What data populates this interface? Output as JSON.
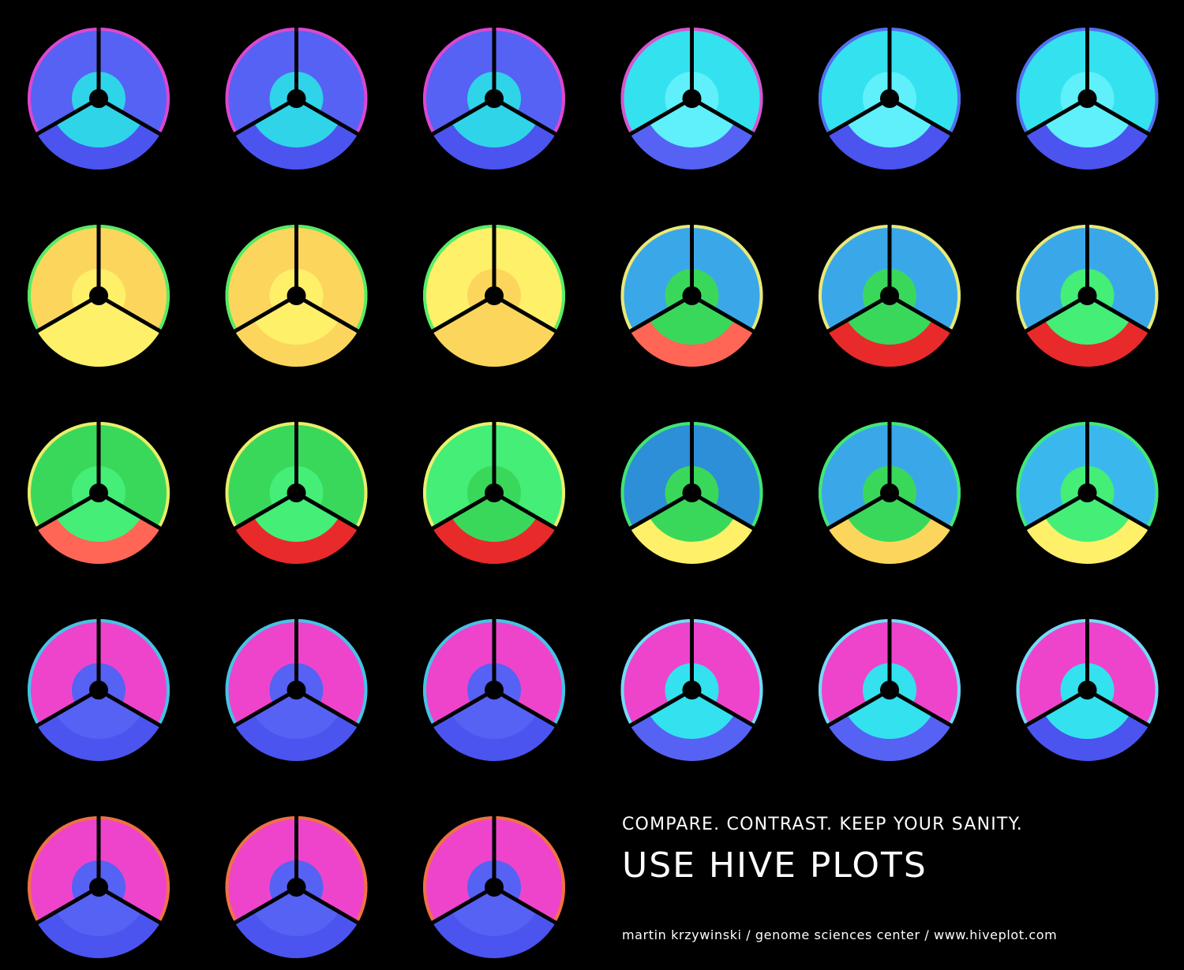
{
  "caption": {
    "tagline": "COMPARE. CONTRAST. KEEP YOUR SANITY.",
    "headline": "USE HIVE PLOTS",
    "credit": "martin krzywinski / genome sciences center / www.hiveplot.com"
  },
  "palette": {
    "background": "#000000",
    "axis": "#000000",
    "hub": "#000000"
  },
  "hive_plots": [
    {
      "row": 0,
      "col": 0,
      "outer": "#5562f4",
      "inner": "#2fd4e8",
      "bottom": "#4b54ef",
      "accent": "#ee44cc"
    },
    {
      "row": 0,
      "col": 1,
      "outer": "#5562f4",
      "inner": "#2fd4e8",
      "bottom": "#4b54ef",
      "accent": "#ee44cc"
    },
    {
      "row": 0,
      "col": 2,
      "outer": "#5562f4",
      "inner": "#2fd4e8",
      "bottom": "#4b54ef",
      "accent": "#ee44cc"
    },
    {
      "row": 0,
      "col": 3,
      "outer": "#33e2ee",
      "inner": "#5ff0fb",
      "bottom": "#5562f4",
      "accent": "#ee44cc"
    },
    {
      "row": 0,
      "col": 4,
      "outer": "#33e2ee",
      "inner": "#5ff0fb",
      "bottom": "#4b54ef",
      "accent": "#5562f4"
    },
    {
      "row": 0,
      "col": 5,
      "outer": "#33e2ee",
      "inner": "#5ff0fb",
      "bottom": "#4b54ef",
      "accent": "#5562f4"
    },
    {
      "row": 1,
      "col": 0,
      "outer": "#fcd65c",
      "inner": "#fff06a",
      "bottom": "#fff06a",
      "accent": "#44ee66"
    },
    {
      "row": 1,
      "col": 1,
      "outer": "#fcd65c",
      "inner": "#fff06a",
      "bottom": "#fcd65c",
      "accent": "#44ee66"
    },
    {
      "row": 1,
      "col": 2,
      "outer": "#fff06a",
      "inner": "#fcd65c",
      "bottom": "#fcd65c",
      "accent": "#44ee66"
    },
    {
      "row": 1,
      "col": 3,
      "outer": "#3aa8e8",
      "inner": "#3ad85a",
      "bottom": "#ff6655",
      "accent": "#fff06a"
    },
    {
      "row": 1,
      "col": 4,
      "outer": "#3aa8e8",
      "inner": "#3ad85a",
      "bottom": "#e82a2a",
      "accent": "#fff06a"
    },
    {
      "row": 1,
      "col": 5,
      "outer": "#3aa8e8",
      "inner": "#44ee77",
      "bottom": "#e82a2a",
      "accent": "#fff06a"
    },
    {
      "row": 2,
      "col": 0,
      "outer": "#3ad85a",
      "inner": "#44ee77",
      "bottom": "#ff6655",
      "accent": "#fff06a"
    },
    {
      "row": 2,
      "col": 1,
      "outer": "#3ad85a",
      "inner": "#44ee77",
      "bottom": "#e82a2a",
      "accent": "#fff06a"
    },
    {
      "row": 2,
      "col": 2,
      "outer": "#44ee77",
      "inner": "#3ad85a",
      "bottom": "#e82a2a",
      "accent": "#fff06a"
    },
    {
      "row": 2,
      "col": 3,
      "outer": "#2d8fd8",
      "inner": "#3ad85a",
      "bottom": "#fff06a",
      "accent": "#44ee66"
    },
    {
      "row": 2,
      "col": 4,
      "outer": "#3aa8e8",
      "inner": "#3ad85a",
      "bottom": "#fcd65c",
      "accent": "#44ee66"
    },
    {
      "row": 2,
      "col": 5,
      "outer": "#3ab8ee",
      "inner": "#44ee77",
      "bottom": "#fff06a",
      "accent": "#44ee66"
    },
    {
      "row": 3,
      "col": 0,
      "outer": "#ee44cc",
      "inner": "#5562f4",
      "bottom": "#4b54ef",
      "accent": "#2fd4e8"
    },
    {
      "row": 3,
      "col": 1,
      "outer": "#ee44cc",
      "inner": "#5562f4",
      "bottom": "#4b54ef",
      "accent": "#2fd4e8"
    },
    {
      "row": 3,
      "col": 2,
      "outer": "#ee44cc",
      "inner": "#5562f4",
      "bottom": "#4b54ef",
      "accent": "#2fd4e8"
    },
    {
      "row": 3,
      "col": 3,
      "outer": "#ee44cc",
      "inner": "#33e2ee",
      "bottom": "#5562f4",
      "accent": "#5ff0fb"
    },
    {
      "row": 3,
      "col": 4,
      "outer": "#ee44cc",
      "inner": "#33e2ee",
      "bottom": "#5562f4",
      "accent": "#5ff0fb"
    },
    {
      "row": 3,
      "col": 5,
      "outer": "#ee44cc",
      "inner": "#33e2ee",
      "bottom": "#4b54ef",
      "accent": "#5ff0fb"
    },
    {
      "row": 4,
      "col": 0,
      "outer": "#ee44cc",
      "inner": "#5562f4",
      "bottom": "#4b54ef",
      "accent": "#ee7733"
    },
    {
      "row": 4,
      "col": 1,
      "outer": "#ee44cc",
      "inner": "#5562f4",
      "bottom": "#4b54ef",
      "accent": "#ee7733"
    },
    {
      "row": 4,
      "col": 2,
      "outer": "#ee44cc",
      "inner": "#5562f4",
      "bottom": "#4b54ef",
      "accent": "#ee7733"
    }
  ]
}
